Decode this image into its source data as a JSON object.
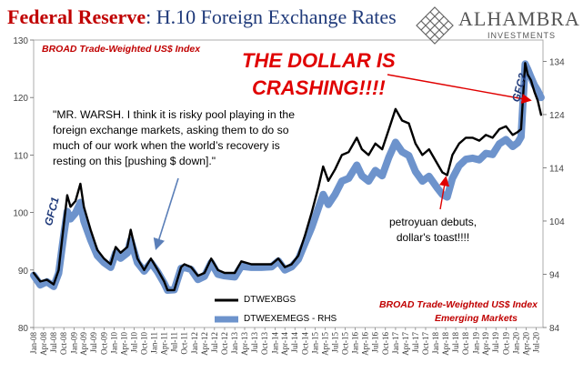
{
  "header": {
    "title_main": "Federal Reserve",
    "title_sub": ": H.10 Foreign Exchange Rates"
  },
  "logo": {
    "name": "ALHAMBRA",
    "sub": "INVESTMENTS",
    "icon": "diamond-lattice-logo"
  },
  "labels": {
    "left_subtitle": "BROAD Trade-Weighted US$ Index",
    "right_subtitle_1": "BROAD Trade-Weighted US$ Index",
    "right_subtitle_2": "Emerging Markets",
    "callout_1": "THE DOLLAR IS",
    "callout_2": "CRASHING!!!!",
    "quote": "\"MR. WARSH. I think it is risky pool playing in the foreign exchange markets, asking them to do so much of our work when the world’s recovery is resting on this [pushing $ down].\"",
    "petro_1": "petroyuan debuts,",
    "petro_2": "dollar's toast!!!!",
    "gfc1": "GFC1",
    "gfc2": "GFC2"
  },
  "colors": {
    "title_red": "#c00000",
    "title_blue": "#1f3a7a",
    "series_black": "#000000",
    "series_blue": "#6d93cc",
    "arrow_blue": "#5b7fb8",
    "arrow_red": "#e00000"
  },
  "chart_data": {
    "type": "line",
    "left_axis": {
      "ylim": [
        80,
        130
      ],
      "ticks": [
        "80",
        "90",
        "100",
        "110",
        "120",
        "130"
      ]
    },
    "right_axis": {
      "ylim": [
        84,
        138
      ],
      "ticks": [
        "84",
        "94",
        "104",
        "114",
        "124",
        "134"
      ]
    },
    "x_ticks": [
      "Jan-08",
      "Apr-08",
      "Jul-08",
      "Oct-08",
      "Jan-09",
      "Apr-09",
      "Jul-09",
      "Oct-09",
      "Jan-10",
      "Apr-10",
      "Jul-10",
      "Oct-10",
      "Jan-11",
      "Apr-11",
      "Jul-11",
      "Oct-11",
      "Jan-12",
      "Apr-12",
      "Jul-12",
      "Oct-12",
      "Jan-13",
      "Apr-13",
      "Jul-13",
      "Oct-13",
      "Jan-14",
      "Apr-14",
      "Jul-14",
      "Oct-14",
      "Jan-15",
      "Apr-15",
      "Jul-15",
      "Oct-15",
      "Jan-16",
      "Apr-16",
      "Jul-16",
      "Oct-16",
      "Jan-17",
      "Apr-17",
      "Jul-17",
      "Oct-17",
      "Jan-18",
      "Apr-18",
      "Jul-18",
      "Oct-18",
      "Jan-19",
      "Apr-19",
      "Jul-19",
      "Oct-19",
      "Jan-20",
      "Apr-20",
      "Jul-20"
    ],
    "grid": false,
    "legend": "bottom-left",
    "series": [
      {
        "name": "DTWEXBGS",
        "axis": "left",
        "color": "#000000",
        "points": [
          [
            "2008-01-01",
            89.5
          ],
          [
            "2008-03-01",
            88.0
          ],
          [
            "2008-05-01",
            88.3
          ],
          [
            "2008-07-01",
            87.5
          ],
          [
            "2008-08-15",
            90.0
          ],
          [
            "2008-10-01",
            98.0
          ],
          [
            "2008-11-01",
            103.0
          ],
          [
            "2008-12-01",
            101.0
          ],
          [
            "2009-01-15",
            102.0
          ],
          [
            "2009-03-01",
            105.0
          ],
          [
            "2009-04-01",
            101.0
          ],
          [
            "2009-06-01",
            97.0
          ],
          [
            "2009-08-01",
            93.5
          ],
          [
            "2009-10-01",
            92.0
          ],
          [
            "2009-12-01",
            91.0
          ],
          [
            "2010-01-15",
            94.0
          ],
          [
            "2010-03-01",
            93.0
          ],
          [
            "2010-05-01",
            94.0
          ],
          [
            "2010-06-01",
            97.0
          ],
          [
            "2010-08-01",
            92.0
          ],
          [
            "2010-10-01",
            90.0
          ],
          [
            "2010-12-01",
            92.0
          ],
          [
            "2011-02-01",
            90.0
          ],
          [
            "2011-04-01",
            88.0
          ],
          [
            "2011-05-01",
            86.5
          ],
          [
            "2011-07-01",
            86.5
          ],
          [
            "2011-09-01",
            90.5
          ],
          [
            "2011-10-01",
            91.0
          ],
          [
            "2011-12-01",
            90.5
          ],
          [
            "2012-02-01",
            89.0
          ],
          [
            "2012-04-01",
            89.5
          ],
          [
            "2012-06-01",
            92.0
          ],
          [
            "2012-08-01",
            90.0
          ],
          [
            "2012-10-01",
            89.5
          ],
          [
            "2013-01-01",
            89.5
          ],
          [
            "2013-03-01",
            91.5
          ],
          [
            "2013-06-01",
            91.0
          ],
          [
            "2013-09-01",
            91.0
          ],
          [
            "2013-12-01",
            91.0
          ],
          [
            "2014-02-01",
            92.0
          ],
          [
            "2014-04-01",
            90.5
          ],
          [
            "2014-06-01",
            91.0
          ],
          [
            "2014-08-01",
            92.5
          ],
          [
            "2014-10-01",
            96.0
          ],
          [
            "2014-12-01",
            100.0
          ],
          [
            "2015-02-01",
            104.5
          ],
          [
            "2015-03-15",
            108.0
          ],
          [
            "2015-05-01",
            105.5
          ],
          [
            "2015-07-01",
            107.5
          ],
          [
            "2015-09-01",
            110.0
          ],
          [
            "2015-11-01",
            110.5
          ],
          [
            "2016-01-15",
            113.0
          ],
          [
            "2016-03-01",
            111.0
          ],
          [
            "2016-05-01",
            110.0
          ],
          [
            "2016-07-01",
            112.0
          ],
          [
            "2016-09-01",
            111.0
          ],
          [
            "2016-11-01",
            114.5
          ],
          [
            "2017-01-01",
            118.0
          ],
          [
            "2017-03-01",
            116.0
          ],
          [
            "2017-05-01",
            115.5
          ],
          [
            "2017-07-01",
            112.0
          ],
          [
            "2017-09-01",
            110.0
          ],
          [
            "2017-11-01",
            111.0
          ],
          [
            "2018-01-15",
            108.5
          ],
          [
            "2018-03-01",
            107.0
          ],
          [
            "2018-04-15",
            106.5
          ],
          [
            "2018-06-01",
            110.0
          ],
          [
            "2018-08-01",
            112.0
          ],
          [
            "2018-10-01",
            113.0
          ],
          [
            "2018-12-01",
            113.0
          ],
          [
            "2019-02-01",
            112.5
          ],
          [
            "2019-04-01",
            113.5
          ],
          [
            "2019-06-01",
            113.0
          ],
          [
            "2019-08-01",
            114.5
          ],
          [
            "2019-10-01",
            115.0
          ],
          [
            "2019-12-01",
            113.5
          ],
          [
            "2020-01-15",
            114.0
          ],
          [
            "2020-02-15",
            114.5
          ],
          [
            "2020-03-23",
            126.0
          ],
          [
            "2020-04-15",
            124.0
          ],
          [
            "2020-05-15",
            123.0
          ],
          [
            "2020-06-15",
            121.0
          ],
          [
            "2020-07-15",
            119.5
          ],
          [
            "2020-08-15",
            117.0
          ]
        ]
      },
      {
        "name": "DTWEXEMEGS - RHS",
        "axis": "right",
        "color": "#6d93cc",
        "points": [
          [
            "2008-01-01",
            93.8
          ],
          [
            "2008-03-01",
            92.0
          ],
          [
            "2008-05-01",
            92.6
          ],
          [
            "2008-07-01",
            91.7
          ],
          [
            "2008-08-15",
            94.2
          ],
          [
            "2008-10-01",
            101.5
          ],
          [
            "2008-11-01",
            105.8
          ],
          [
            "2008-12-01",
            104.4
          ],
          [
            "2009-01-15",
            105.5
          ],
          [
            "2009-03-01",
            107.5
          ],
          [
            "2009-04-01",
            104.0
          ],
          [
            "2009-06-01",
            100.5
          ],
          [
            "2009-08-01",
            97.5
          ],
          [
            "2009-10-01",
            96.2
          ],
          [
            "2009-12-01",
            95.3
          ],
          [
            "2010-01-15",
            98.0
          ],
          [
            "2010-03-01",
            97.0
          ],
          [
            "2010-05-01",
            98.0
          ],
          [
            "2010-06-01",
            100.4
          ],
          [
            "2010-08-01",
            96.2
          ],
          [
            "2010-10-01",
            94.6
          ],
          [
            "2010-12-01",
            96.2
          ],
          [
            "2011-02-01",
            94.4
          ],
          [
            "2011-04-01",
            92.3
          ],
          [
            "2011-05-01",
            91.0
          ],
          [
            "2011-07-01",
            91.1
          ],
          [
            "2011-09-01",
            95.1
          ],
          [
            "2011-10-01",
            95.3
          ],
          [
            "2011-12-01",
            94.9
          ],
          [
            "2012-02-01",
            93.0
          ],
          [
            "2012-04-01",
            93.6
          ],
          [
            "2012-06-01",
            96.2
          ],
          [
            "2012-08-01",
            94.0
          ],
          [
            "2012-10-01",
            93.7
          ],
          [
            "2013-01-01",
            93.5
          ],
          [
            "2013-03-01",
            95.5
          ],
          [
            "2013-06-01",
            95.3
          ],
          [
            "2013-09-01",
            95.3
          ],
          [
            "2013-12-01",
            95.4
          ],
          [
            "2014-02-01",
            96.5
          ],
          [
            "2014-04-01",
            94.8
          ],
          [
            "2014-06-01",
            95.4
          ],
          [
            "2014-08-01",
            96.8
          ],
          [
            "2014-10-01",
            99.8
          ],
          [
            "2014-12-01",
            102.8
          ],
          [
            "2015-02-01",
            106.5
          ],
          [
            "2015-03-15",
            109.0
          ],
          [
            "2015-05-01",
            107.1
          ],
          [
            "2015-07-01",
            109.0
          ],
          [
            "2015-09-01",
            111.5
          ],
          [
            "2015-11-01",
            112.0
          ],
          [
            "2016-01-15",
            114.5
          ],
          [
            "2016-03-01",
            112.5
          ],
          [
            "2016-05-01",
            111.5
          ],
          [
            "2016-07-01",
            113.5
          ],
          [
            "2016-09-01",
            112.5
          ],
          [
            "2016-11-01",
            116.0
          ],
          [
            "2017-01-01",
            118.8
          ],
          [
            "2017-03-01",
            117.0
          ],
          [
            "2017-05-01",
            116.3
          ],
          [
            "2017-07-01",
            113.3
          ],
          [
            "2017-09-01",
            111.5
          ],
          [
            "2017-11-01",
            112.4
          ],
          [
            "2018-01-15",
            110.2
          ],
          [
            "2018-03-01",
            109.0
          ],
          [
            "2018-04-15",
            108.5
          ],
          [
            "2018-06-01",
            112.0
          ],
          [
            "2018-08-01",
            114.4
          ],
          [
            "2018-10-01",
            115.6
          ],
          [
            "2018-12-01",
            115.8
          ],
          [
            "2019-02-01",
            115.5
          ],
          [
            "2019-04-01",
            116.7
          ],
          [
            "2019-06-01",
            116.5
          ],
          [
            "2019-08-01",
            118.5
          ],
          [
            "2019-10-01",
            119.3
          ],
          [
            "2019-12-01",
            118.0
          ],
          [
            "2020-01-15",
            118.7
          ],
          [
            "2020-02-15",
            119.8
          ],
          [
            "2020-03-23",
            133.5
          ],
          [
            "2020-04-15",
            132.5
          ],
          [
            "2020-05-15",
            131.0
          ],
          [
            "2020-06-15",
            129.5
          ],
          [
            "2020-07-15",
            128.5
          ],
          [
            "2020-08-15",
            127.2
          ]
        ]
      }
    ]
  }
}
